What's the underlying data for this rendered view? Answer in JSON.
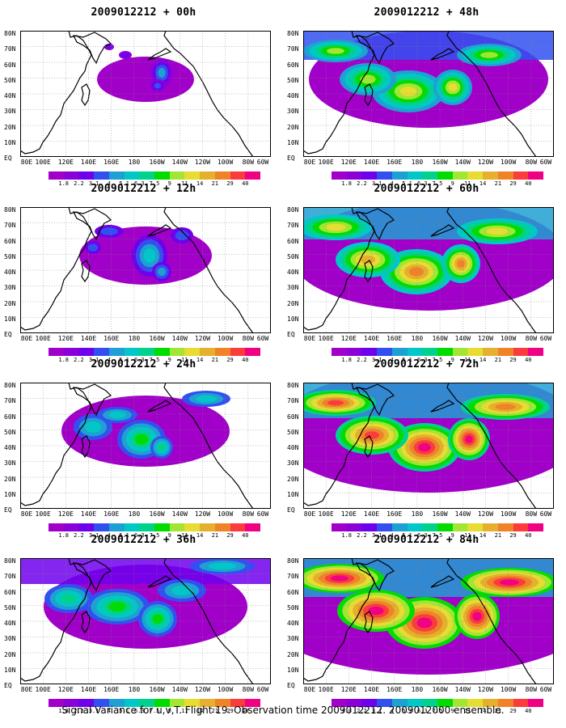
{
  "footer": "Signal Variance for u,v,T. Flight 19. Observation time 2009012212. 2009012000 ensemble.",
  "lat_labels": [
    "80N",
    "70N",
    "60N",
    "50N",
    "40N",
    "30N",
    "20N",
    "10N",
    "EQ"
  ],
  "lon_labels": [
    "80E",
    "100E",
    "120E",
    "140E",
    "160E",
    "180",
    "160W",
    "140W",
    "120W",
    "100W",
    "80W",
    "60W"
  ],
  "colorbar": {
    "labels": [
      "1.8",
      "2.2",
      "3.1",
      "4",
      "5.1",
      "6.3",
      "7.5",
      "9",
      "11",
      "14",
      "21",
      "29",
      "40"
    ],
    "colors": [
      "#a000c8",
      "#8c00d8",
      "#6e00ec",
      "#3250f0",
      "#1ea0d2",
      "#00c8c8",
      "#00d28c",
      "#00dc00",
      "#a0e632",
      "#e6dc32",
      "#e6af2d",
      "#f08228",
      "#fa3c3c",
      "#f00082"
    ]
  },
  "panels": [
    {
      "title": "2009012212 + 00h",
      "level": 0
    },
    {
      "title": "2009012212 + 48h",
      "level": 4
    },
    {
      "title": "2009012212 + 12h",
      "level": 1
    },
    {
      "title": "2009012212 + 60h",
      "level": 5
    },
    {
      "title": "2009012212 + 24h",
      "level": 2
    },
    {
      "title": "2009012212 + 72h",
      "level": 6
    },
    {
      "title": "2009012212 + 36h",
      "level": 3
    },
    {
      "title": "2009012212 + 84h",
      "level": 7
    }
  ]
}
